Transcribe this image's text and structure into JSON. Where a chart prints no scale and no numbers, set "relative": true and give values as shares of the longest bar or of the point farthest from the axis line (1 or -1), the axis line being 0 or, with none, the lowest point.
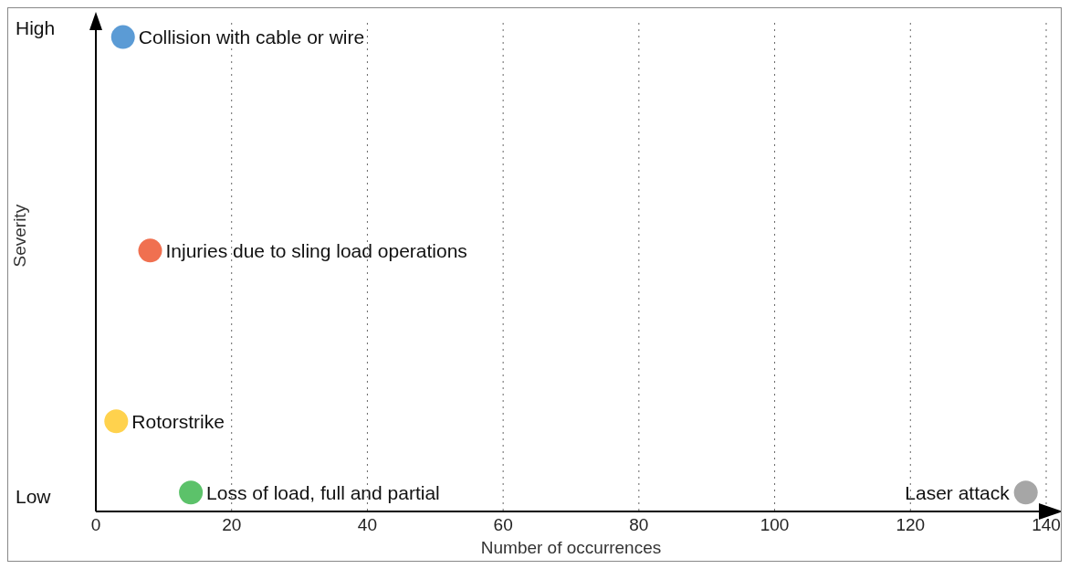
{
  "chart_data": {
    "type": "scatter",
    "xlabel": "Number of occurrences",
    "ylabel": "Severity",
    "relative": true,
    "x": [
      4,
      8,
      3,
      14,
      137
    ],
    "values": [
      1,
      0.55,
      0.19,
      0.04,
      0.04
    ],
    "colors": [
      "#5b9bd5",
      "#f07050",
      "#ffd24d",
      "#5cc26a",
      "#a6a6a6"
    ],
    "marker": "circle",
    "annotations": [
      "High",
      "Low",
      {
        "text": "Collision with cable or wire",
        "x": 4,
        "y": 1
      },
      {
        "text": "Injuries due to sling load operations",
        "x": 8,
        "y": 0.55
      },
      {
        "text": "Rotorstrike",
        "x": 3,
        "y": 0.19
      },
      {
        "text": "Loss of load, full and partial",
        "x": 14,
        "y": 0.04
      },
      {
        "text": "Laser attack",
        "x": 137,
        "y": 0.04
      }
    ],
    "xlim": [
      0,
      140
    ],
    "xticks": [
      0,
      20,
      40,
      60,
      80,
      100,
      120,
      140
    ],
    "grid": "x"
  }
}
